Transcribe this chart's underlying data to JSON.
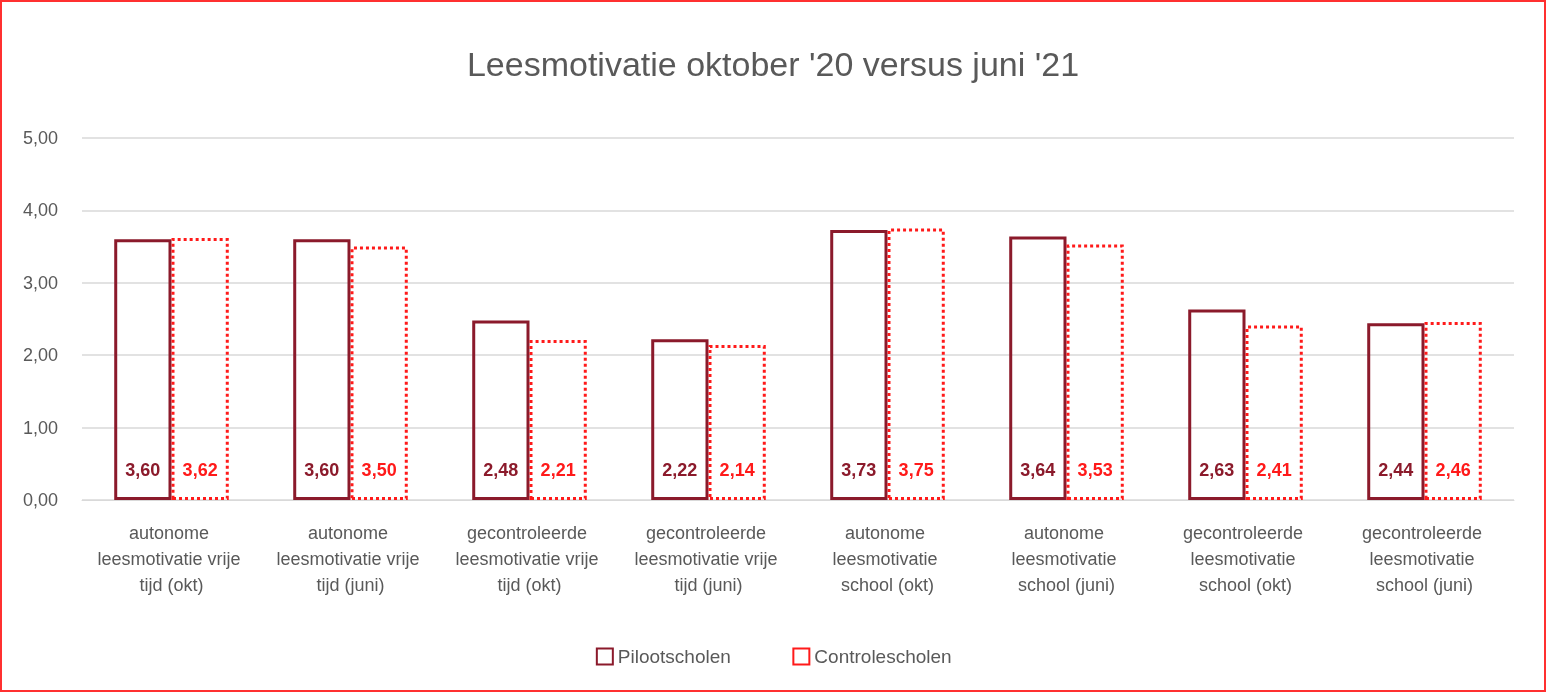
{
  "chart_data": {
    "type": "bar",
    "title": "Leesmotivatie oktober '20 versus juni '21",
    "categories": [
      "autonome leesmotivatie vrije tijd (okt)",
      "autonome leesmotivatie vrije tijd (juni)",
      "gecontroleerde leesmotivatie vrije tijd (okt)",
      "gecontroleerde leesmotivatie vrije tijd (juni)",
      "autonome leesmotivatie school (okt)",
      "autonome leesmotivatie school (juni)",
      "gecontroleerde leesmotivatie school (okt)",
      "gecontroleerde leesmotivatie school (juni)"
    ],
    "series": [
      {
        "name": "Pilootscholen",
        "color": "#8b1a2b",
        "line_style": "solid",
        "values": [
          3.6,
          3.6,
          2.48,
          2.22,
          3.73,
          3.64,
          2.63,
          2.44
        ],
        "value_labels": [
          "3,60",
          "3,60",
          "2,48",
          "2,22",
          "3,73",
          "3,64",
          "2,63",
          "2,44"
        ]
      },
      {
        "name": "Controlescholen",
        "color": "#ff1a1a",
        "line_style": "dotted",
        "values": [
          3.62,
          3.5,
          2.21,
          2.14,
          3.75,
          3.53,
          2.41,
          2.46
        ],
        "value_labels": [
          "3,62",
          "3,50",
          "2,21",
          "2,14",
          "3,75",
          "3,53",
          "2,41",
          "2,46"
        ]
      }
    ],
    "ylim": [
      0,
      5
    ],
    "yticks": [
      {
        "value": 0,
        "label": "0,00"
      },
      {
        "value": 1,
        "label": "1,00"
      },
      {
        "value": 2,
        "label": "2,00"
      },
      {
        "value": 3,
        "label": "3,00"
      },
      {
        "value": 4,
        "label": "4,00"
      },
      {
        "value": 5,
        "label": "5,00"
      }
    ],
    "grid": "y",
    "legend": "bottom"
  }
}
